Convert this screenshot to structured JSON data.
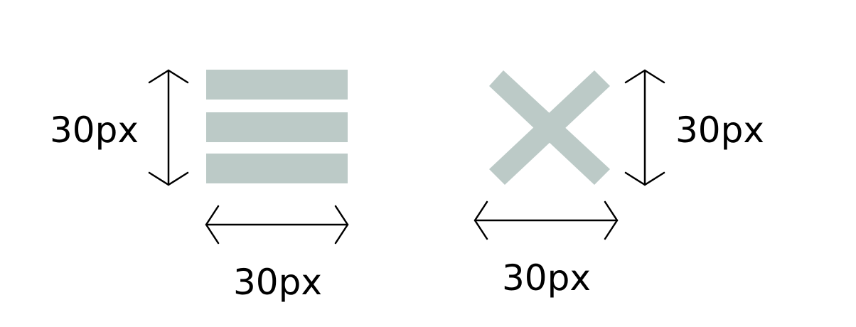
{
  "colors": {
    "icon_fill": "#bccac7",
    "arrow_stroke": "#000000",
    "background": "#ffffff"
  },
  "hamburger_figure": {
    "icon": "hamburger-menu-icon",
    "height_label": "30px",
    "width_label": "30px"
  },
  "close_figure": {
    "icon": "close-x-icon",
    "height_label": "30px",
    "width_label": "30px"
  }
}
